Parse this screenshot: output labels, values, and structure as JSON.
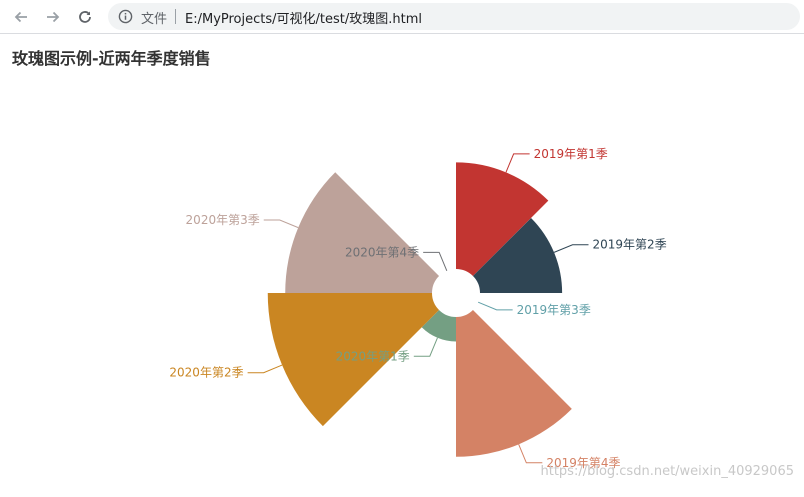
{
  "browser": {
    "security_label": "文件",
    "url": "E:/MyProjects/可视化/test/玫瑰图.html"
  },
  "page": {
    "title": "玫瑰图示例-近两年季度销售"
  },
  "watermark": "https://blog.csdn.net/weixin_40929065",
  "chart_data": {
    "type": "pie",
    "subtype": "nightingale-rose",
    "title": "玫瑰图示例-近两年季度销售",
    "start_angle": 90,
    "clockwise": true,
    "max_value": 190,
    "slices": [
      {
        "label": "2019年第1季",
        "value": 122,
        "color": "#c23531"
      },
      {
        "label": "2019年第2季",
        "value": 94,
        "color": "#2f4554"
      },
      {
        "label": "2019年第3季",
        "value": 0,
        "color": "#61a0a8"
      },
      {
        "label": "2019年第4季",
        "value": 160,
        "color": "#d48265"
      },
      {
        "label": "2020年第1季",
        "value": 28,
        "color": "#749f83"
      },
      {
        "label": "2020年第2季",
        "value": 188,
        "color": "#ca8622"
      },
      {
        "label": "2020年第3季",
        "value": 168,
        "color": "#bda29a"
      },
      {
        "label": "2020年第4季",
        "value": 0,
        "color": "#6e7074"
      }
    ]
  }
}
